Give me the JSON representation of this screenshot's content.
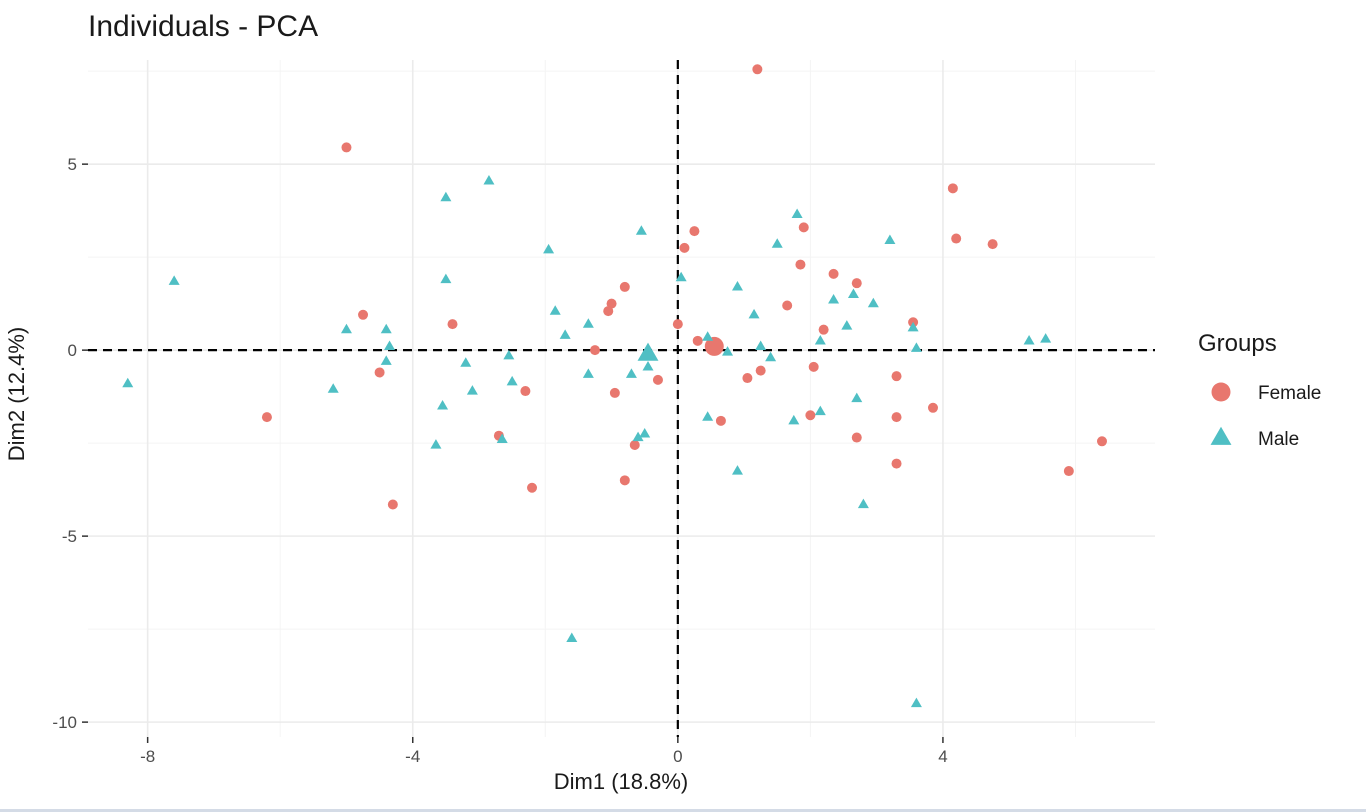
{
  "chart_data": {
    "type": "scatter",
    "title": "Individuals - PCA",
    "xlabel": "Dim1 (18.8%)",
    "ylabel": "Dim2 (12.4%)",
    "xlim": [
      -8.9,
      7.2
    ],
    "ylim": [
      -10.4,
      7.8
    ],
    "xticks": [
      -8,
      -4,
      0,
      4
    ],
    "yticks": [
      5,
      0,
      -5,
      -10
    ],
    "xtick_labels": [
      "-8",
      "-4",
      "0",
      "4"
    ],
    "ytick_labels": [
      "5",
      "0",
      "-5",
      "-10"
    ],
    "grid": true,
    "reference_lines": {
      "x": 0,
      "y": 0,
      "style": "dashed"
    },
    "legend": {
      "title": "Groups",
      "placement": "right",
      "entries": [
        {
          "name": "Female",
          "shape": "circle",
          "color": "#e8776e"
        },
        {
          "name": "Male",
          "shape": "triangle",
          "color": "#4fbfc4"
        }
      ]
    },
    "series": [
      {
        "name": "Female",
        "color": "#e8776e",
        "shape": "circle",
        "centroid": [
          0.55,
          0.1
        ],
        "points": [
          [
            1.2,
            7.55
          ],
          [
            -5.0,
            5.45
          ],
          [
            4.15,
            4.35
          ],
          [
            4.2,
            3.0
          ],
          [
            4.75,
            2.85
          ],
          [
            0.25,
            3.2
          ],
          [
            1.9,
            3.3
          ],
          [
            0.1,
            2.75
          ],
          [
            1.85,
            2.3
          ],
          [
            2.35,
            2.05
          ],
          [
            2.7,
            1.8
          ],
          [
            -0.8,
            1.7
          ],
          [
            -1.0,
            1.25
          ],
          [
            -1.05,
            1.05
          ],
          [
            1.65,
            1.2
          ],
          [
            2.2,
            0.55
          ],
          [
            3.55,
            0.75
          ],
          [
            -4.75,
            0.95
          ],
          [
            -3.4,
            0.7
          ],
          [
            0.0,
            0.7
          ],
          [
            0.3,
            0.25
          ],
          [
            -1.25,
            0.0
          ],
          [
            -4.5,
            -0.6
          ],
          [
            -0.3,
            -0.8
          ],
          [
            1.25,
            -0.55
          ],
          [
            1.05,
            -0.75
          ],
          [
            2.05,
            -0.45
          ],
          [
            3.3,
            -0.7
          ],
          [
            -0.95,
            -1.15
          ],
          [
            -2.3,
            -1.1
          ],
          [
            3.85,
            -1.55
          ],
          [
            2.0,
            -1.75
          ],
          [
            3.3,
            -1.8
          ],
          [
            0.65,
            -1.9
          ],
          [
            -2.7,
            -2.3
          ],
          [
            2.7,
            -2.35
          ],
          [
            -0.65,
            -2.55
          ],
          [
            6.4,
            -2.45
          ],
          [
            3.3,
            -3.05
          ],
          [
            5.9,
            -3.25
          ],
          [
            -0.8,
            -3.5
          ],
          [
            -2.2,
            -3.7
          ],
          [
            -4.3,
            -4.15
          ],
          [
            -6.2,
            -1.8
          ]
        ]
      },
      {
        "name": "Male",
        "color": "#4fbfc4",
        "shape": "triangle",
        "centroid": [
          -0.45,
          -0.1
        ],
        "points": [
          [
            -2.85,
            4.55
          ],
          [
            -3.5,
            4.1
          ],
          [
            1.8,
            3.65
          ],
          [
            -0.55,
            3.2
          ],
          [
            3.2,
            2.95
          ],
          [
            1.5,
            2.85
          ],
          [
            -1.95,
            2.7
          ],
          [
            0.05,
            1.95
          ],
          [
            -7.6,
            1.85
          ],
          [
            -3.5,
            1.9
          ],
          [
            0.9,
            1.7
          ],
          [
            2.35,
            1.35
          ],
          [
            2.65,
            1.5
          ],
          [
            2.95,
            1.25
          ],
          [
            -1.85,
            1.05
          ],
          [
            1.15,
            0.95
          ],
          [
            -1.35,
            0.7
          ],
          [
            2.55,
            0.65
          ],
          [
            3.55,
            0.6
          ],
          [
            -5.0,
            0.55
          ],
          [
            -4.4,
            0.55
          ],
          [
            -1.7,
            0.4
          ],
          [
            0.45,
            0.35
          ],
          [
            2.15,
            0.25
          ],
          [
            5.3,
            0.25
          ],
          [
            5.55,
            0.3
          ],
          [
            -4.35,
            0.1
          ],
          [
            1.25,
            0.1
          ],
          [
            3.6,
            0.05
          ],
          [
            0.75,
            -0.05
          ],
          [
            -2.55,
            -0.15
          ],
          [
            1.4,
            -0.2
          ],
          [
            -4.4,
            -0.3
          ],
          [
            -3.2,
            -0.35
          ],
          [
            -0.45,
            -0.45
          ],
          [
            -1.35,
            -0.65
          ],
          [
            -0.7,
            -0.65
          ],
          [
            -8.3,
            -0.9
          ],
          [
            -2.5,
            -0.85
          ],
          [
            -5.2,
            -1.05
          ],
          [
            -3.1,
            -1.1
          ],
          [
            -3.55,
            -1.5
          ],
          [
            2.15,
            -1.65
          ],
          [
            2.7,
            -1.3
          ],
          [
            0.45,
            -1.8
          ],
          [
            1.75,
            -1.9
          ],
          [
            -0.5,
            -2.25
          ],
          [
            -0.6,
            -2.35
          ],
          [
            -2.65,
            -2.4
          ],
          [
            -3.65,
            -2.55
          ],
          [
            0.9,
            -3.25
          ],
          [
            2.8,
            -4.15
          ],
          [
            -1.6,
            -7.75
          ],
          [
            3.6,
            -9.5
          ]
        ]
      }
    ]
  }
}
